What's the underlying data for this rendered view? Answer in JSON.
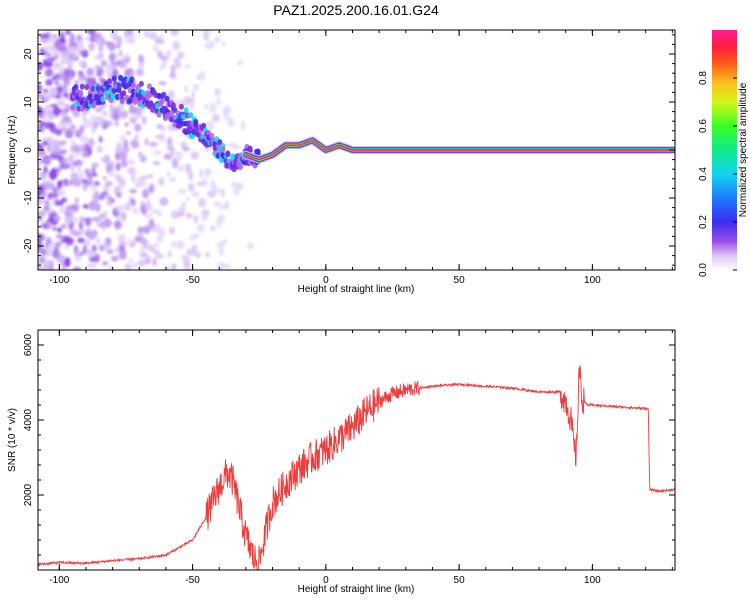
{
  "figure_title": "PAZ1.2025.200.16.01.G24",
  "chart_data": [
    {
      "type": "heatmap",
      "title": "",
      "xlabel": "Height of straight line (km)",
      "ylabel": "Frequency (Hz)",
      "xlim": [
        -108,
        131
      ],
      "ylim": [
        -25,
        25
      ],
      "xticks": [
        -100,
        -50,
        0,
        50,
        100
      ],
      "yticks": [
        -20,
        -10,
        0,
        10,
        20
      ],
      "colorbar": {
        "label": "Normalized spectral amplitude",
        "range": [
          0,
          1
        ],
        "ticks": [
          0.0,
          0.2,
          0.4,
          0.6,
          0.8
        ],
        "colormap": "rainbow: white → violet → blue → cyan → green → yellow → red → magenta"
      },
      "ridge": {
        "description": "dominant frequency ridge (approximate)",
        "x": [
          -90,
          -80,
          -70,
          -60,
          -50,
          -45,
          -40,
          -35,
          -30,
          -25,
          -20,
          -15,
          -10,
          -5,
          0,
          5,
          10,
          20,
          30,
          50,
          80,
          90,
          95,
          100,
          110,
          120,
          131
        ],
        "y": [
          11,
          13,
          12,
          9,
          5,
          3,
          0,
          -3,
          -1,
          -2,
          -1,
          1,
          1,
          2,
          0,
          1,
          0,
          0,
          0,
          0,
          0,
          0,
          0,
          0,
          0,
          0,
          0
        ]
      },
      "grid": false
    },
    {
      "type": "line",
      "title": "",
      "xlabel": "Height of straight line (km)",
      "ylabel": "SNR (10 * v/v)",
      "xlim": [
        -108,
        131
      ],
      "ylim": [
        0,
        6400
      ],
      "xticks": [
        -100,
        -50,
        0,
        50,
        100
      ],
      "yticks": [
        2000,
        4000,
        6000
      ],
      "series": [
        {
          "color": "#ee3b3b",
          "x": [
            -108,
            -100,
            -90,
            -80,
            -70,
            -60,
            -55,
            -50,
            -45,
            -40,
            -37,
            -35,
            -33,
            -30,
            -27,
            -25,
            -22,
            -20,
            -15,
            -10,
            -5,
            0,
            5,
            10,
            15,
            20,
            25,
            30,
            40,
            50,
            60,
            70,
            80,
            88,
            90,
            92,
            93,
            94,
            95,
            96,
            98,
            100,
            110,
            121,
            121.5,
            125,
            131
          ],
          "y": [
            150,
            200,
            180,
            250,
            300,
            400,
            600,
            800,
            1400,
            2200,
            2600,
            2400,
            1800,
            900,
            300,
            200,
            1200,
            1800,
            2300,
            2700,
            3000,
            3200,
            3500,
            3800,
            4200,
            4500,
            4700,
            4800,
            4900,
            4950,
            4900,
            4850,
            4750,
            4750,
            4500,
            4000,
            3300,
            3000,
            5500,
            4600,
            4400,
            4400,
            4350,
            4300,
            2150,
            2100,
            2150
          ]
        }
      ],
      "grid": false
    }
  ]
}
